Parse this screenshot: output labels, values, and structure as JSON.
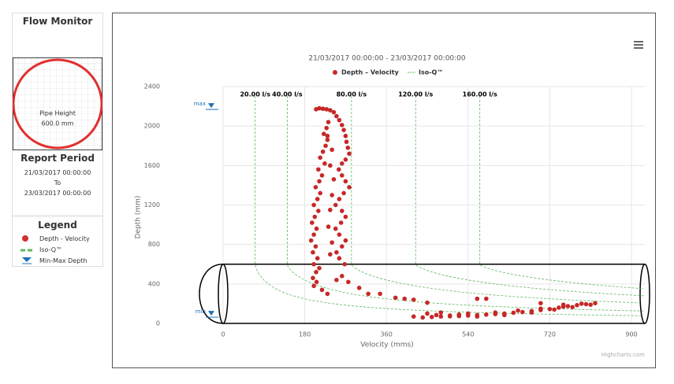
{
  "sidebar": {
    "title": "Flow Monitor",
    "pipe_label": "Pipe Height",
    "pipe_value": "600.0 mm",
    "report_title": "Report Period",
    "report_from": "21/03/2017 00:00:00",
    "report_to_word": "To",
    "report_to": "23/03/2017 00:00:00",
    "legend_title": "Legend",
    "legend_items": [
      "Depth - Velocity",
      "Iso-Q™",
      "Min-Max Depth"
    ]
  },
  "chart_data": {
    "type": "scatter",
    "subtitle": "21/03/2017 00:00:00 - 23/03/2017 00:00:00",
    "x_label": "Velocity (mms)",
    "y_label": "Depth (mm)",
    "credit": "Highcharts.com",
    "xlim": [
      0,
      900
    ],
    "xticks": [
      0,
      180,
      360,
      540,
      720,
      900
    ],
    "ylim": [
      0,
      2400
    ],
    "yticks": [
      0,
      400,
      800,
      1200,
      1600,
      2000,
      2400
    ],
    "grid": true,
    "pipe_height": 600,
    "iso_q": {
      "name": "Iso-Q™",
      "color": "#5cb85c",
      "lines": [
        {
          "value": 20,
          "label": "20.00 l/s"
        },
        {
          "value": 40,
          "label": "40.00 l/s"
        },
        {
          "value": 80,
          "label": "80.00 l/s"
        },
        {
          "value": 120,
          "label": "120.00 l/s"
        },
        {
          "value": 160,
          "label": "160.00 l/s"
        }
      ]
    },
    "min_max_depth": {
      "max": {
        "value": 2200,
        "label": "max"
      },
      "min": {
        "value": 95,
        "label": "min"
      }
    },
    "series": [
      {
        "name": "Depth – Velocity",
        "color": "#c62828",
        "x": [
          205,
          212,
          220,
          228,
          236,
          244,
          250,
          256,
          262,
          266,
          270,
          272,
          275,
          278,
          270,
          262,
          255,
          262,
          270,
          278,
          266,
          256,
          248,
          262,
          270,
          260,
          248,
          256,
          270,
          262,
          250,
          256,
          268,
          232,
          228,
          222,
          230,
          226,
          220,
          214,
          224,
          210,
          218,
          212,
          204,
          214,
          208,
          200,
          210,
          202,
          196,
          206,
          200,
          194,
          204,
          198,
          208,
          200,
          212,
          205,
          230,
          240,
          236,
          244,
          240,
          236,
          232,
          240,
          236,
          198,
          206,
          200,
          218,
          230,
          250,
          262,
          276,
          300,
          320,
          346,
          380,
          400,
          420,
          450,
          560,
          580,
          420,
          440,
          460,
          480,
          500,
          520,
          540,
          560,
          580,
          600,
          620,
          640,
          660,
          680,
          700,
          720,
          740,
          760,
          780,
          800,
          820,
          450,
          480,
          500,
          540,
          600,
          650,
          700,
          750,
          790,
          560,
          620,
          680,
          730,
          770,
          810,
          700,
          750,
          470,
          520
        ],
        "values": [
          2170,
          2180,
          2175,
          2170,
          2160,
          2140,
          2100,
          2060,
          2010,
          1960,
          1900,
          1840,
          1780,
          1720,
          1660,
          1620,
          1560,
          1500,
          1440,
          1380,
          1320,
          1260,
          1200,
          1140,
          1080,
          1020,
          960,
          900,
          840,
          780,
          720,
          660,
          600,
          2040,
          1980,
          1920,
          1860,
          1800,
          1740,
          1680,
          1620,
          1560,
          1500,
          1440,
          1380,
          1320,
          1260,
          1200,
          1140,
          1080,
          1020,
          960,
          900,
          840,
          780,
          720,
          660,
          600,
          560,
          520,
          1900,
          1760,
          1600,
          1460,
          1300,
          1150,
          980,
          820,
          700,
          460,
          420,
          380,
          340,
          300,
          440,
          480,
          420,
          360,
          300,
          300,
          260,
          250,
          240,
          210,
          250,
          250,
          70,
          60,
          65,
          70,
          72,
          75,
          80,
          85,
          90,
          95,
          100,
          108,
          115,
          125,
          135,
          145,
          160,
          175,
          185,
          195,
          205,
          100,
          110,
          80,
          100,
          110,
          130,
          150,
          170,
          200,
          70,
          85,
          110,
          140,
          165,
          190,
          205,
          190,
          85,
          90
        ]
      }
    ]
  }
}
